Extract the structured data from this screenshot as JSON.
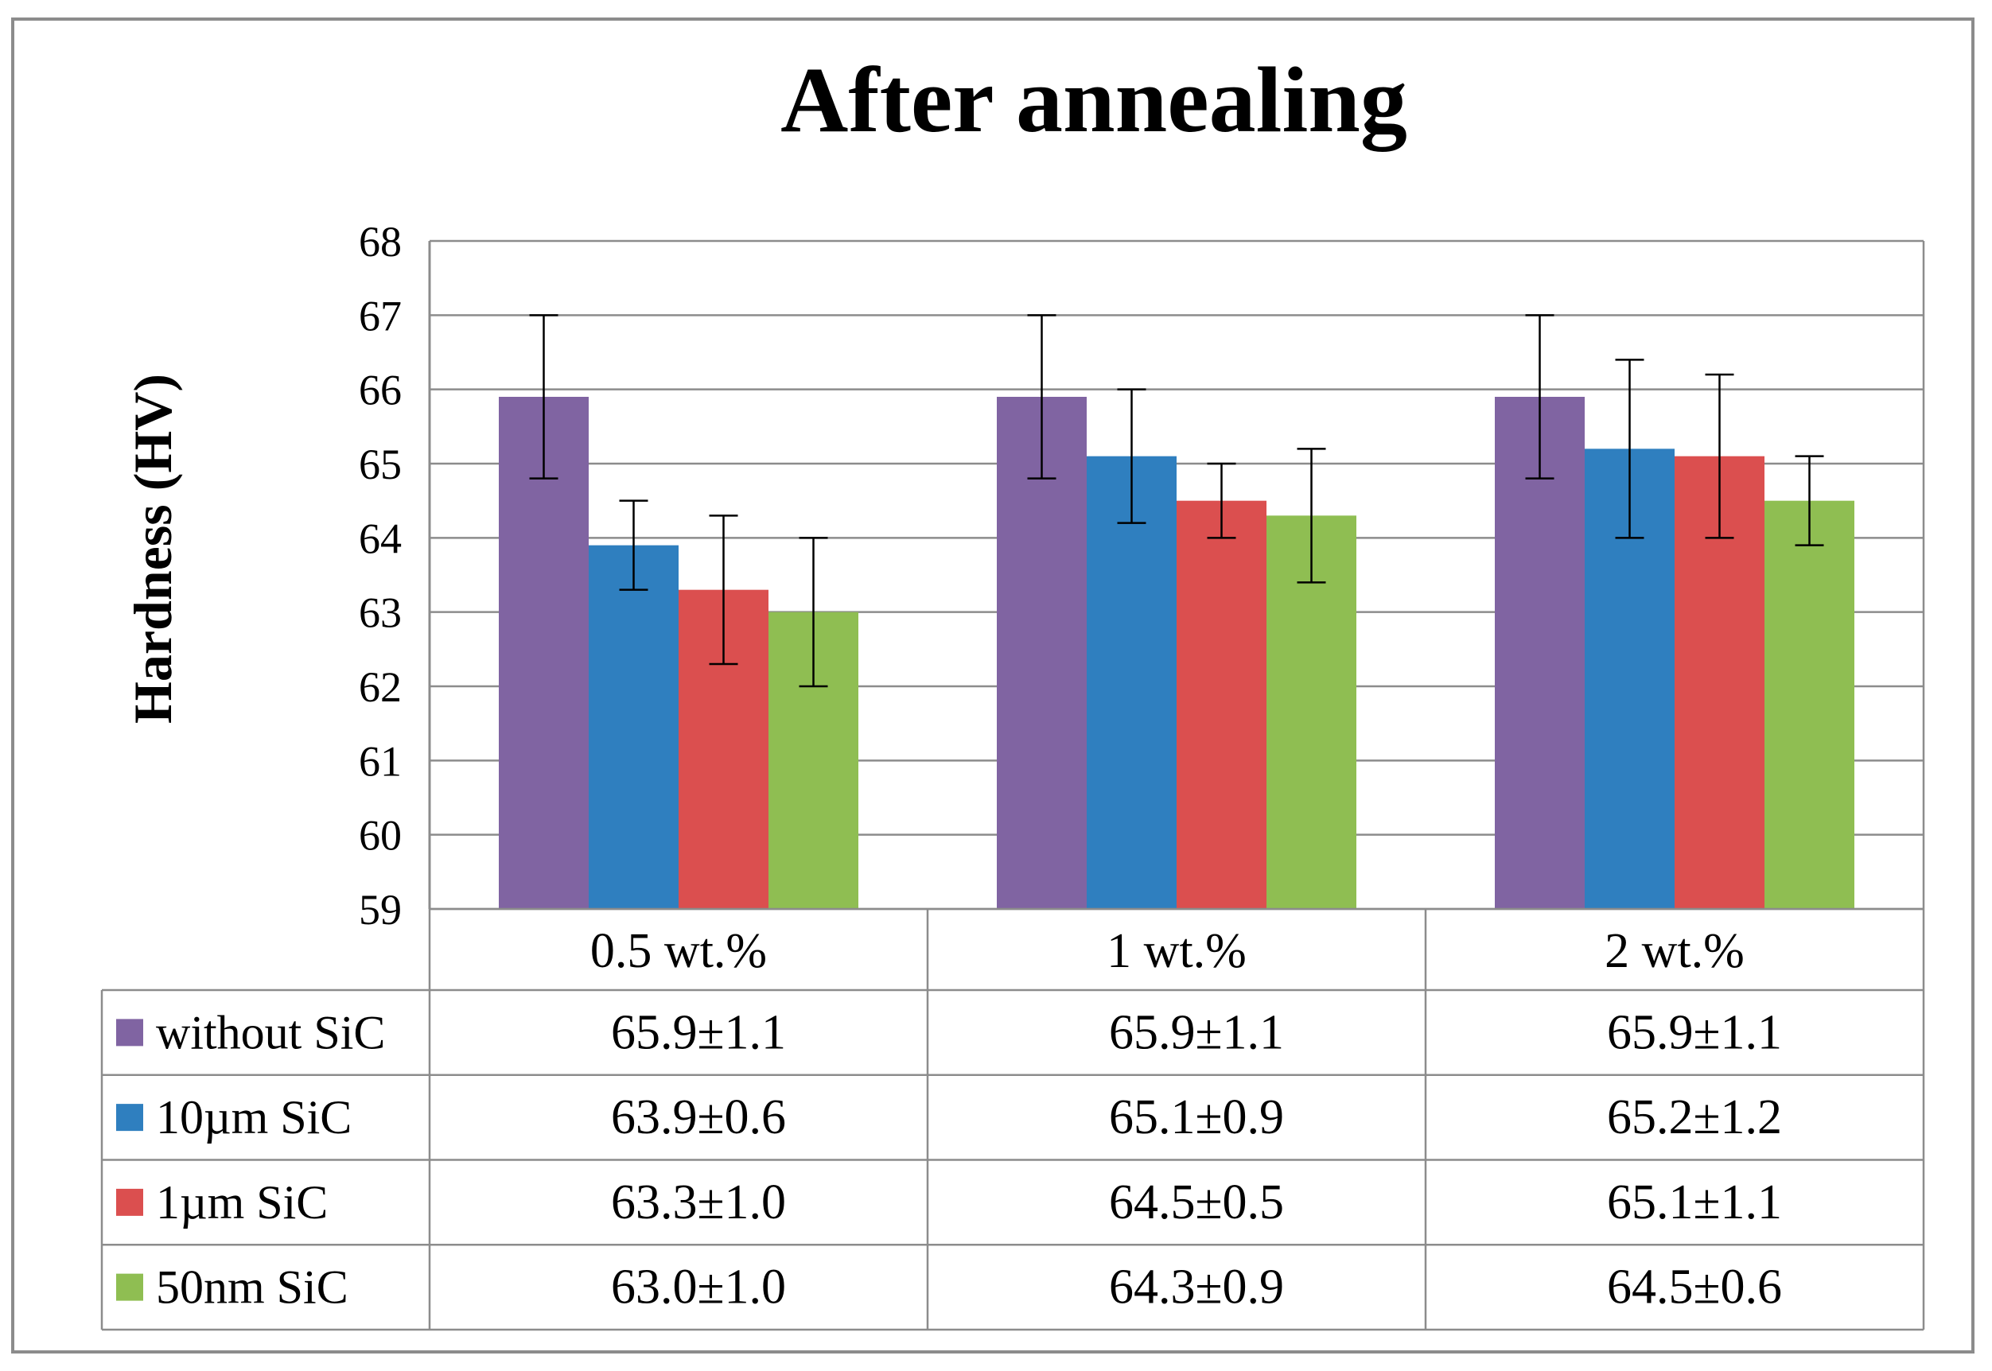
{
  "chart_data": {
    "type": "bar",
    "title": "After annealing",
    "xlabel": "",
    "ylabel": "Hardness (HV)",
    "ylim": [
      59,
      68
    ],
    "yticks": [
      59,
      60,
      61,
      62,
      63,
      64,
      65,
      66,
      67,
      68
    ],
    "grid": true,
    "legend": "data-table-left",
    "categories": [
      "0.5 wt.%",
      "1 wt.%",
      "2 wt.%"
    ],
    "series": [
      {
        "name": "without SiC",
        "color": "#8064A2",
        "values": [
          65.9,
          65.9,
          65.9
        ],
        "errors": [
          1.1,
          1.1,
          1.1
        ],
        "labels": [
          "65.9±1.1",
          "65.9±1.1",
          "65.9±1.1"
        ]
      },
      {
        "name": "10µm SiC",
        "color": "#2F7FBF",
        "values": [
          63.9,
          65.1,
          65.2
        ],
        "errors": [
          0.6,
          0.9,
          1.2
        ],
        "labels": [
          "63.9±0.6",
          "65.1±0.9",
          "65.2±1.2"
        ]
      },
      {
        "name": "1µm SiC",
        "color": "#DB4F4F",
        "values": [
          63.3,
          64.5,
          65.1
        ],
        "errors": [
          1.0,
          0.5,
          1.1
        ],
        "labels": [
          "63.3±1.0",
          "64.5±0.5",
          "65.1±1.1"
        ]
      },
      {
        "name": "50nm SiC",
        "color": "#8FBE52",
        "values": [
          63.0,
          64.3,
          64.5
        ],
        "errors": [
          1.0,
          0.9,
          0.6
        ],
        "labels": [
          "63.0±1.0",
          "64.3±0.9",
          "64.5±0.6"
        ]
      }
    ]
  }
}
